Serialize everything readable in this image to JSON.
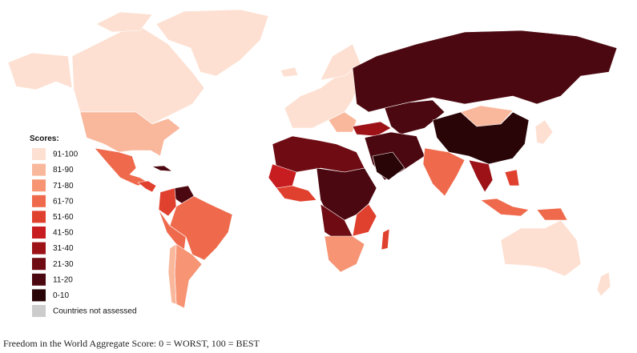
{
  "legend": {
    "title": "Scores:",
    "items": [
      {
        "label": "91-100",
        "color": "#fde0d2"
      },
      {
        "label": "81-90",
        "color": "#f9b79c"
      },
      {
        "label": "71-80",
        "color": "#f69474"
      },
      {
        "label": "61-70",
        "color": "#ef6a4c"
      },
      {
        "label": "51-60",
        "color": "#e0402e"
      },
      {
        "label": "41-50",
        "color": "#c71d20"
      },
      {
        "label": "31-40",
        "color": "#9c1217"
      },
      {
        "label": "21-30",
        "color": "#6e0b13"
      },
      {
        "label": "11-20",
        "color": "#4c0810"
      },
      {
        "label": "0-10",
        "color": "#2a0508"
      },
      {
        "label": "Countries not assessed",
        "color": "#cccccc"
      }
    ]
  },
  "caption": "Freedom in the World Aggregate Score: 0 = WORST, 100 = BEST"
}
